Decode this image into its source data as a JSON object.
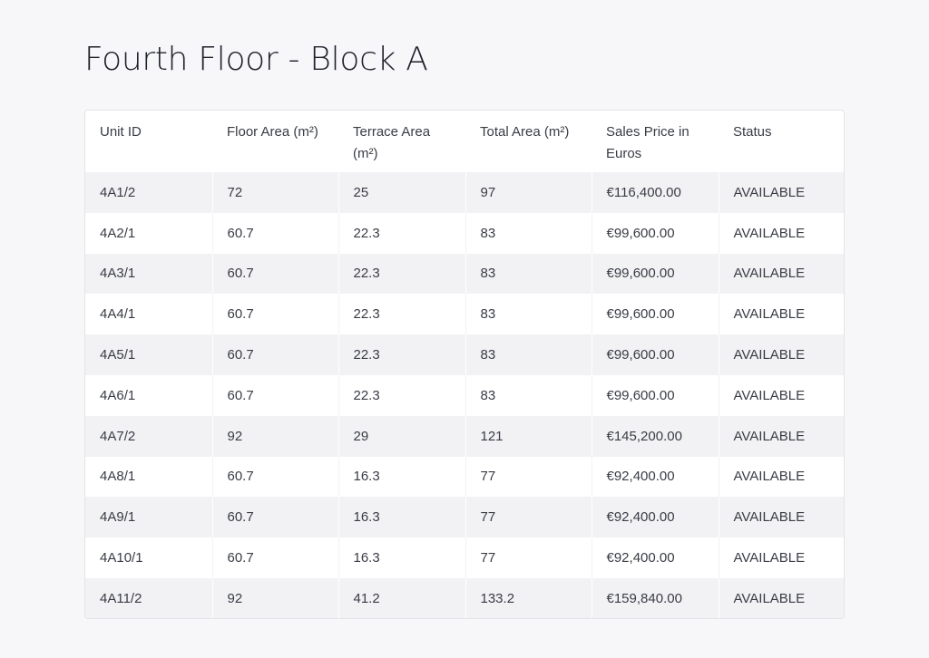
{
  "page": {
    "title": "Fourth Floor - Block A"
  },
  "table": {
    "headers": [
      "Unit ID",
      "Floor Area (m²)",
      "Terrace Area (m²)",
      "Total Area (m²)",
      "Sales Price in Euros",
      "Status"
    ],
    "rows": [
      [
        "4A1/2",
        "72",
        "25",
        "97",
        "€116,400.00",
        "AVAILABLE"
      ],
      [
        "4A2/1",
        "60.7",
        "22.3",
        "83",
        "€99,600.00",
        "AVAILABLE"
      ],
      [
        "4A3/1",
        "60.7",
        "22.3",
        "83",
        "€99,600.00",
        "AVAILABLE"
      ],
      [
        "4A4/1",
        "60.7",
        "22.3",
        "83",
        "€99,600.00",
        "AVAILABLE"
      ],
      [
        "4A5/1",
        "60.7",
        "22.3",
        "83",
        "€99,600.00",
        "AVAILABLE"
      ],
      [
        "4A6/1",
        "60.7",
        "22.3",
        "83",
        "€99,600.00",
        "AVAILABLE"
      ],
      [
        "4A7/2",
        "92",
        "29",
        "121",
        "€145,200.00",
        "AVAILABLE"
      ],
      [
        "4A8/1",
        "60.7",
        "16.3",
        "77",
        "€92,400.00",
        "AVAILABLE"
      ],
      [
        "4A9/1",
        "60.7",
        "16.3",
        "77",
        "€92,400.00",
        "AVAILABLE"
      ],
      [
        "4A10/1",
        "60.7",
        "16.3",
        "77",
        "€92,400.00",
        "AVAILABLE"
      ],
      [
        "4A11/2",
        "92",
        "41.2",
        "133.2",
        "€159,840.00",
        "AVAILABLE"
      ]
    ]
  }
}
